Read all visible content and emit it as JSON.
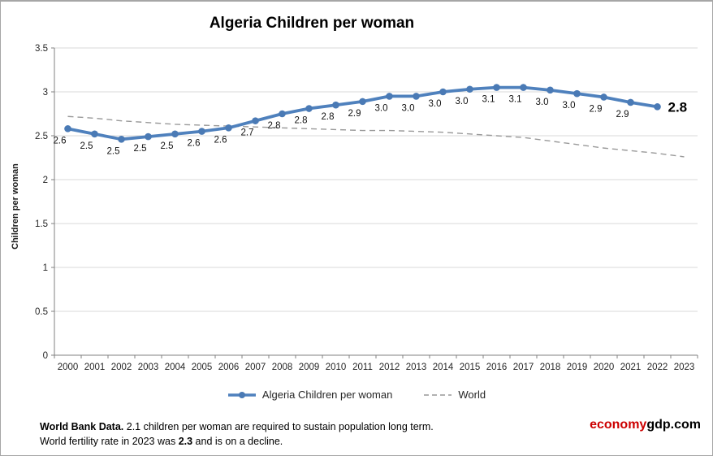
{
  "title": "Algeria Children per woman",
  "y_axis_title": "Children per woman",
  "chart_data": {
    "type": "line",
    "title": "Algeria Children per woman",
    "xlabel": "",
    "ylabel": "Children per woman",
    "ylim": [
      0,
      3.5
    ],
    "y_ticks": [
      0,
      0.5,
      1,
      1.5,
      2,
      2.5,
      3,
      3.5
    ],
    "y_tick_labels": [
      "0",
      "0.5",
      "1",
      "1.5",
      "2",
      "2.5",
      "3",
      "3.5"
    ],
    "categories": [
      "2000",
      "2001",
      "2002",
      "2003",
      "2004",
      "2005",
      "2006",
      "2007",
      "2008",
      "2009",
      "2010",
      "2011",
      "2012",
      "2013",
      "2014",
      "2015",
      "2016",
      "2017",
      "2018",
      "2019",
      "2020",
      "2021",
      "2022",
      "2023"
    ],
    "grid": "horizontal",
    "legend_position": "bottom",
    "series": [
      {
        "name": "Algeria Children per woman",
        "color": "#4F81BD",
        "marker_color": "#4A7AB5",
        "style": "solid",
        "markers": true,
        "values": [
          2.6,
          2.5,
          2.5,
          2.5,
          2.5,
          2.6,
          2.6,
          2.7,
          2.8,
          2.8,
          2.8,
          2.9,
          3.0,
          3.0,
          3.0,
          3.0,
          3.1,
          3.1,
          3.0,
          3.0,
          2.9,
          2.9,
          2.8
        ],
        "plot_values": [
          2.58,
          2.52,
          2.46,
          2.49,
          2.52,
          2.55,
          2.59,
          2.67,
          2.75,
          2.81,
          2.85,
          2.89,
          2.95,
          2.95,
          3.0,
          3.03,
          3.05,
          3.05,
          3.02,
          2.98,
          2.94,
          2.88,
          2.83
        ],
        "data_labels": [
          "2.6",
          "2.5",
          "2.5",
          "2.5",
          "2.5",
          "2.6",
          "2.6",
          "2.7",
          "2.8",
          "2.8",
          "2.8",
          "2.9",
          "3.0",
          "3.0",
          "3.0",
          "3.0",
          "3.1",
          "3.1",
          "3.0",
          "3.0",
          "2.9",
          "2.9",
          "2.8"
        ],
        "emphasize_last_label": true
      },
      {
        "name": "World",
        "color": "#999999",
        "style": "dashed",
        "markers": false,
        "values": [
          2.72,
          2.7,
          2.67,
          2.65,
          2.63,
          2.62,
          2.61,
          2.6,
          2.59,
          2.58,
          2.57,
          2.56,
          2.56,
          2.55,
          2.54,
          2.52,
          2.5,
          2.48,
          2.44,
          2.4,
          2.36,
          2.33,
          2.3,
          2.26
        ]
      }
    ]
  },
  "legend": {
    "algeria_label": "Algeria Children per woman",
    "world_label": "World"
  },
  "footer": {
    "line1_bold": "World Bank Data.",
    "line1_rest": "  2.1 children per woman are required to sustain population long term.",
    "line2_pre": "World fertility rate in 2023 was ",
    "line2_bold": "2.3",
    "line2_post": " and is on a decline."
  },
  "branding": {
    "red_part": "economy",
    "dark_part": "gdp.com",
    "red_color": "#cc0000"
  }
}
